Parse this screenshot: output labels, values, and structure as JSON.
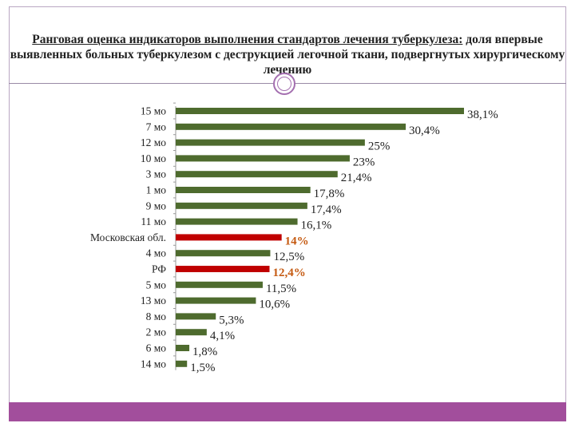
{
  "title": {
    "underlined": "Ранговая оценка индикаторов выполнения стандартов лечения туберкулеза:",
    "rest": " доля впервые выявленных больных туберкулезом с деструкцией легочной ткани, подвергнутых хирургическому лечению"
  },
  "colors": {
    "bar_default": "#4e6b2e",
    "bar_highlight": "#c00000",
    "label_default": "#222222",
    "label_highlight": "#c55a11",
    "accent": "#a24e9c"
  },
  "chart_data": {
    "type": "bar",
    "orientation": "horizontal",
    "categories": [
      "15 мо",
      "7 мо",
      "12 мо",
      "10 мо",
      "3 мо",
      "1 мо",
      "9 мо",
      "11 мо",
      "Московская обл.",
      "4 мо",
      "РФ",
      "5 мо",
      "13 мо",
      "8 мо",
      "2 мо",
      "6 мо",
      "14 мо"
    ],
    "values": [
      38.1,
      30.4,
      25,
      23,
      21.4,
      17.8,
      17.4,
      16.1,
      14,
      12.5,
      12.4,
      11.5,
      10.6,
      5.3,
      4.1,
      1.8,
      1.5
    ],
    "value_labels": [
      "38,1%",
      "30,4%",
      "25%",
      "23%",
      "21,4%",
      "17,8%",
      "17,4%",
      "16,1%",
      "14%",
      "12,5%",
      "12,4%",
      "11,5%",
      "10,6%",
      "5,3%",
      "4,1%",
      "1,8%",
      "1,5%"
    ],
    "highlighted": [
      "Московская обл.",
      "РФ"
    ],
    "xlim": [
      0,
      38.1
    ],
    "grid": false,
    "legend": "none"
  }
}
